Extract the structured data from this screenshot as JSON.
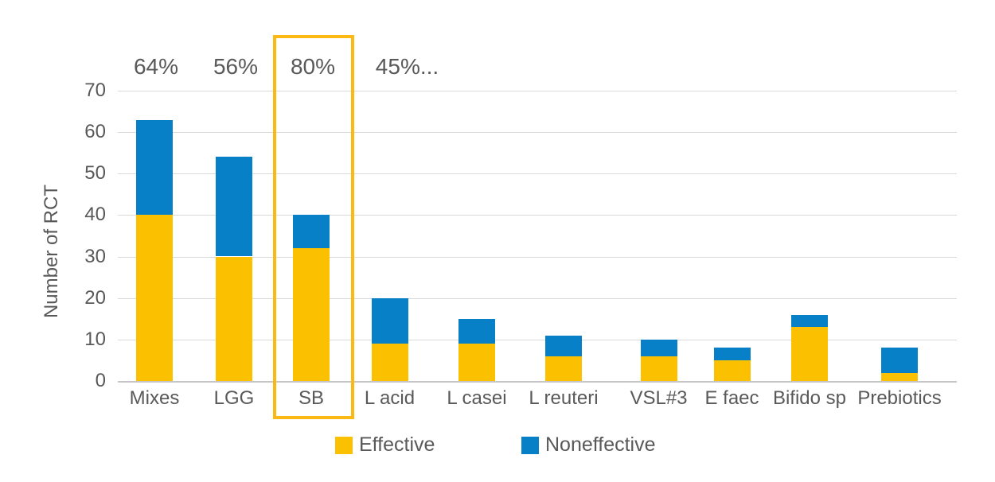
{
  "chart_data": {
    "type": "bar",
    "stacked": true,
    "categories": [
      "Mixes",
      "LGG",
      "SB",
      "L acid",
      "L casei",
      "L reuteri",
      "VSL#3",
      "E faec",
      "Bifido sp",
      "Prebiotics"
    ],
    "series": [
      {
        "name": "Effective",
        "color": "#fbc000",
        "values": [
          40,
          30,
          32,
          9,
          9,
          6,
          6,
          5,
          13,
          2
        ]
      },
      {
        "name": "Noneffective",
        "color": "#0780c7",
        "values": [
          23,
          24,
          8,
          11,
          6,
          5,
          4,
          3,
          3,
          6
        ]
      }
    ],
    "totals": [
      63,
      54,
      40,
      20,
      15,
      11,
      10,
      8,
      16,
      8
    ],
    "title": "",
    "xlabel": "",
    "ylabel": "Number of RCT",
    "ylim": [
      0,
      70
    ],
    "yticks": [
      0,
      10,
      20,
      30,
      40,
      50,
      60,
      70
    ],
    "grid": true,
    "legend_position": "bottom",
    "annotations": [
      {
        "text": "64%",
        "category": "Mixes"
      },
      {
        "text": "56%",
        "category": "LGG"
      },
      {
        "text": "80%",
        "category": "SB"
      },
      {
        "text": "45%...",
        "category": "L acid"
      }
    ],
    "highlight": {
      "category": "SB",
      "color": "#fdb913",
      "shape": "rectangle-outline"
    }
  },
  "colors": {
    "effective": "#fbc000",
    "noneffective": "#0780c7",
    "highlight_outline": "#fdb913",
    "gridline": "#d9d9d9",
    "text": "#595959"
  }
}
